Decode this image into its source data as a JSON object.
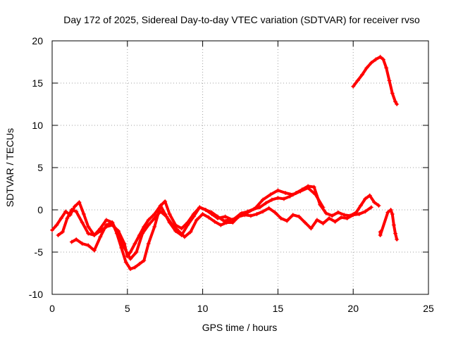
{
  "chart_data": {
    "type": "scatter",
    "title": "Day 172 of 2025, Sidereal Day-to-day VTEC variation (SDTVAR) for receiver rvso",
    "xlabel": "GPS time / hours",
    "ylabel": "SDTVAR / TECUs",
    "xlim": [
      0,
      25
    ],
    "ylim": [
      -10,
      20
    ],
    "xticks": [
      0,
      5,
      10,
      15,
      20,
      25
    ],
    "yticks": [
      -10,
      -5,
      0,
      5,
      10,
      15,
      20
    ],
    "xtick_labels": [
      "0",
      "5",
      "10",
      "15",
      "20",
      "25"
    ],
    "ytick_labels": [
      "-10",
      "-5",
      "0",
      "5",
      "10",
      "15",
      "20"
    ],
    "grid": true,
    "marker": "+",
    "color": "#ff0000",
    "series": [
      {
        "name": "track-1",
        "x": [
          0.0,
          0.3,
          0.6,
          0.9,
          1.2,
          1.5,
          1.8,
          2.1,
          2.4,
          2.8,
          3.2,
          3.6,
          4.0,
          4.4,
          4.8,
          5.0,
          5.2,
          5.5,
          5.8,
          6.1,
          6.4,
          6.8,
          7.2,
          7.5,
          7.8,
          8.2,
          8.6,
          9.0,
          9.4,
          9.8,
          10.2,
          10.6,
          11.0,
          11.5,
          12.0,
          12.5,
          13.0,
          13.5,
          14.0,
          14.5,
          15.0,
          15.5,
          16.0,
          16.5,
          17.0,
          17.5,
          18.0
        ],
        "y": [
          -2.4,
          -1.8,
          -1.0,
          -0.2,
          -0.6,
          0.4,
          0.9,
          -0.5,
          -2.0,
          -3.0,
          -2.5,
          -2.0,
          -1.8,
          -2.5,
          -4.0,
          -5.5,
          -5.0,
          -4.0,
          -3.0,
          -2.0,
          -1.2,
          -0.5,
          0.5,
          -0.5,
          -1.5,
          -2.5,
          -3.0,
          -1.8,
          -0.8,
          0.3,
          0.0,
          -0.5,
          -1.0,
          -0.8,
          -1.2,
          -0.5,
          -0.3,
          0.2,
          1.2,
          1.8,
          2.3,
          2.0,
          1.8,
          2.2,
          2.6,
          1.8,
          0.3
        ]
      },
      {
        "name": "track-2",
        "x": [
          1.3,
          1.6,
          2.0,
          2.4,
          2.8,
          3.2,
          3.6,
          4.0,
          4.3,
          4.6,
          4.9,
          5.2,
          5.5,
          5.8,
          6.1,
          6.4,
          6.8,
          7.2,
          7.5,
          7.8,
          8.2,
          8.6,
          9.0,
          9.4,
          9.8,
          10.2,
          10.6,
          11.0,
          11.4,
          11.8,
          12.2,
          12.6,
          13.0,
          13.4,
          13.8,
          14.2,
          14.6,
          15.0,
          15.4,
          15.8,
          16.2,
          16.6,
          17.0,
          17.4,
          17.8,
          18.2,
          18.6,
          19.0,
          19.4,
          19.8,
          20.2,
          20.5,
          20.8,
          21.1,
          21.4,
          21.7
        ],
        "y": [
          -3.8,
          -3.5,
          -4.0,
          -4.2,
          -4.8,
          -3.2,
          -1.8,
          -1.5,
          -2.8,
          -4.5,
          -6.2,
          -7.0,
          -6.8,
          -6.4,
          -6.0,
          -4.0,
          -2.0,
          0.5,
          1.0,
          -0.5,
          -1.8,
          -2.2,
          -1.5,
          -0.5,
          0.3,
          0.0,
          -0.3,
          -0.8,
          -1.3,
          -1.2,
          -1.0,
          -0.4,
          -0.2,
          0.1,
          0.3,
          0.8,
          1.2,
          1.4,
          1.3,
          1.6,
          2.0,
          2.4,
          2.8,
          2.7,
          0.6,
          -0.4,
          -0.7,
          -0.3,
          -0.6,
          -0.7,
          -0.3,
          0.5,
          1.3,
          1.7,
          0.9,
          0.5
        ]
      },
      {
        "name": "track-3",
        "x": [
          0.4,
          0.7,
          1.0,
          1.3,
          1.6,
          2.0,
          2.4,
          2.8,
          3.2,
          3.6,
          4.0,
          4.4,
          4.8,
          5.2,
          5.6,
          6.0,
          6.4,
          6.8,
          7.2,
          7.6,
          8.0,
          8.4,
          8.8,
          9.2,
          9.6,
          10.0,
          10.4,
          10.8,
          11.2,
          11.6,
          12.0,
          12.4,
          12.8,
          13.2,
          13.6,
          14.0,
          14.4,
          14.8,
          15.2,
          15.6,
          16.0,
          16.4,
          16.8,
          17.2,
          17.6,
          18.0,
          18.4,
          18.8,
          19.2,
          19.6,
          20.0,
          20.4,
          20.8,
          21.2
        ],
        "y": [
          -3.0,
          -2.6,
          -1.0,
          0.0,
          -0.2,
          -1.5,
          -2.8,
          -3.0,
          -2.2,
          -1.2,
          -1.5,
          -3.0,
          -4.5,
          -5.8,
          -5.0,
          -2.8,
          -1.8,
          -1.0,
          -0.2,
          -0.8,
          -1.8,
          -2.5,
          -3.2,
          -2.6,
          -1.2,
          -0.5,
          -0.9,
          -1.4,
          -1.8,
          -1.5,
          -1.5,
          -0.8,
          -0.6,
          -0.7,
          -0.5,
          -0.2,
          0.2,
          -0.3,
          -1.0,
          -1.3,
          -0.6,
          -0.8,
          -1.5,
          -2.2,
          -1.2,
          -1.6,
          -1.0,
          -1.4,
          -0.9,
          -1.0,
          -0.6,
          -0.5,
          -0.2,
          0.3
        ]
      },
      {
        "name": "track-4",
        "x": [
          20.0,
          20.3,
          20.6,
          20.9,
          21.2,
          21.5,
          21.8,
          22.0,
          22.2,
          22.4,
          22.6,
          22.8,
          22.9
        ],
        "y": [
          14.6,
          15.3,
          16.0,
          16.8,
          17.4,
          17.8,
          18.1,
          17.8,
          16.8,
          15.3,
          13.8,
          12.8,
          12.5
        ]
      },
      {
        "name": "track-5",
        "x": [
          21.8,
          21.8,
          22.3,
          22.5,
          22.6,
          22.7,
          22.8,
          22.9
        ],
        "y": [
          -2.6,
          -3.0,
          -0.3,
          0.0,
          -0.5,
          -1.8,
          -2.8,
          -3.5
        ]
      }
    ]
  }
}
